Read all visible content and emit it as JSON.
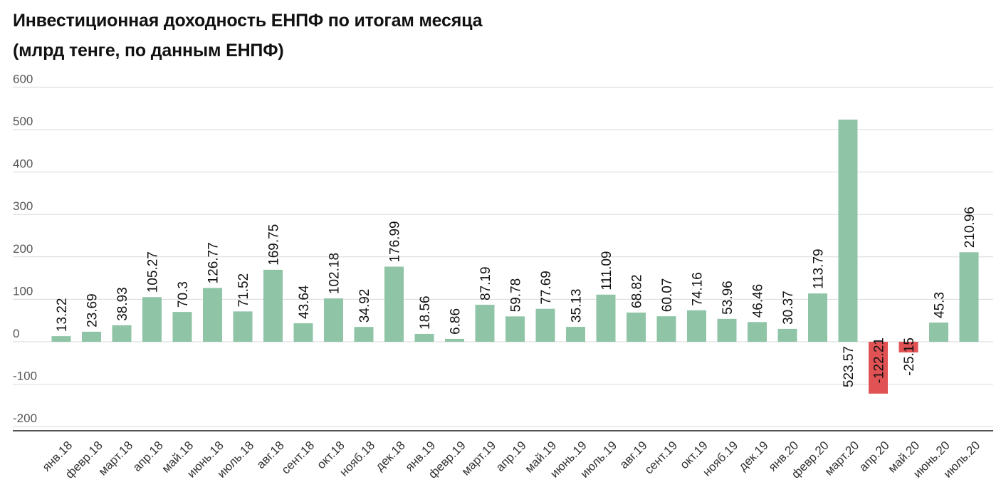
{
  "title_line1": "Инвестиционная доходность ЕНПФ по итогам месяца",
  "title_line2": "(млрд тенге, по данным ЕНПФ)",
  "colors": {
    "positive": "#8fc4a7",
    "negative": "#e05254",
    "grid": "#d9d9d9",
    "axis": "#555555"
  },
  "chart_data": {
    "type": "bar",
    "categories": [
      "янв.18",
      "февр.18",
      "март.18",
      "апр.18",
      "май.18",
      "июнь.18",
      "июль.18",
      "авг.18",
      "сент.18",
      "окт.18",
      "нояб.18",
      "дек.18",
      "янв.19",
      "февр.19",
      "март.19",
      "апр.19",
      "май.19",
      "июнь.19",
      "июль.19",
      "авг.19",
      "сент.19",
      "окт.19",
      "нояб.19",
      "дек.19",
      "янв.20",
      "февр.20",
      "март.20",
      "апр.20",
      "май.20",
      "июнь.20",
      "июль.20"
    ],
    "values": [
      13.22,
      23.69,
      38.93,
      105.27,
      70.3,
      126.77,
      71.52,
      169.75,
      43.64,
      102.18,
      34.92,
      176.99,
      18.56,
      6.86,
      87.19,
      59.78,
      77.69,
      35.13,
      111.09,
      68.82,
      60.07,
      74.16,
      53.96,
      46.46,
      30.37,
      113.79,
      523.57,
      -122.21,
      -25.15,
      45.3,
      210.96
    ],
    "labels": [
      "13.22",
      "23.69",
      "38.93",
      "105.27",
      "70.3",
      "126.77",
      "71.52",
      "169.75",
      "43.64",
      "102.18",
      "34.92",
      "176.99",
      "18.56",
      "6.86",
      "87.19",
      "59.78",
      "77.69",
      "35.13",
      "111.09",
      "68.82",
      "60.07",
      "74.16",
      "53.96",
      "46.46",
      "30.37",
      "113.79",
      "523.57",
      "-122.21",
      "-25.15",
      "45.3",
      "210.96"
    ],
    "yticks": [
      600,
      500,
      400,
      300,
      200,
      100,
      0,
      -100,
      -200
    ],
    "ytick_labels": [
      "600",
      "500",
      "400",
      "300",
      "200",
      "100",
      "0",
      "-100",
      "-200"
    ],
    "ylim": [
      -200,
      600
    ],
    "grid": true,
    "xlabel": "",
    "ylabel": ""
  }
}
